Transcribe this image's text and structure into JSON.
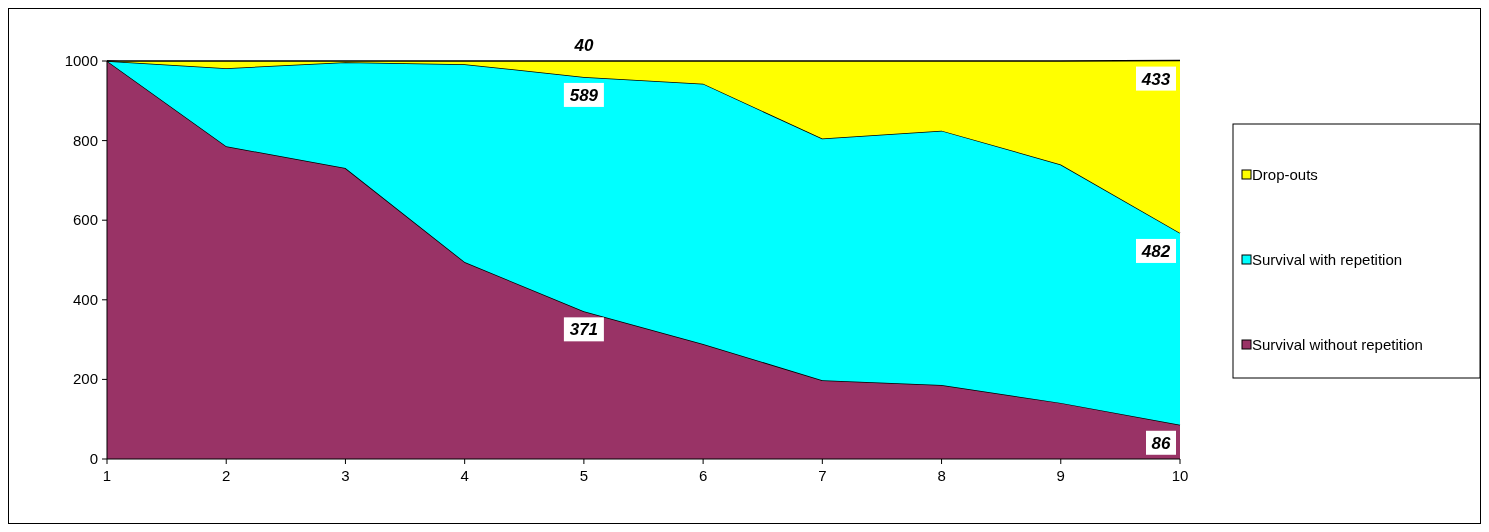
{
  "chart_data": {
    "type": "area",
    "stacked": true,
    "x": [
      1,
      2,
      3,
      4,
      5,
      6,
      7,
      8,
      9,
      10
    ],
    "xlim": [
      1,
      10
    ],
    "xticks": [
      1,
      2,
      3,
      4,
      5,
      6,
      7,
      8,
      9,
      10
    ],
    "ylim": [
      0,
      1000
    ],
    "yticks": [
      0,
      200,
      400,
      600,
      800,
      1000
    ],
    "grid": false,
    "legend": "right",
    "series": [
      {
        "name": "Survival without repetition",
        "color": "#993366",
        "values": [
          1000,
          786,
          731,
          495,
          371,
          289,
          198,
          186,
          141,
          86
        ],
        "value_labels": [
          null,
          null,
          null,
          null,
          "371",
          null,
          null,
          null,
          null,
          "86"
        ]
      },
      {
        "name": "Survival with repetition",
        "color": "#00ffff",
        "values": [
          0,
          196,
          266,
          497,
          589,
          654,
          607,
          639,
          599,
          482
        ],
        "value_labels": [
          null,
          null,
          null,
          null,
          "589",
          null,
          null,
          null,
          null,
          "482"
        ]
      },
      {
        "name": "Drop-outs",
        "color": "#ffff00",
        "values": [
          0,
          18,
          3,
          8,
          40,
          57,
          195,
          175,
          260,
          433
        ],
        "value_labels": [
          null,
          null,
          null,
          null,
          "40",
          null,
          null,
          null,
          null,
          "433"
        ]
      }
    ]
  }
}
